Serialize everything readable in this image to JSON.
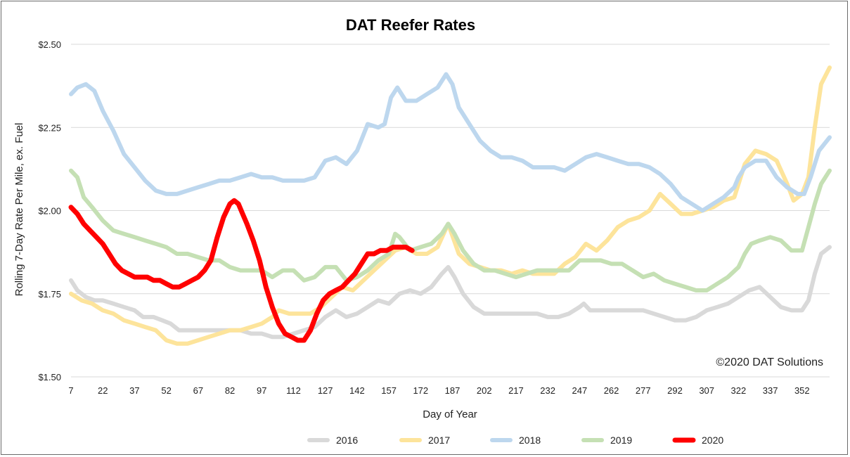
{
  "chart_data": {
    "type": "line",
    "title": "DAT Reefer Rates",
    "xlabel": "Day of Year",
    "ylabel": "Rolling 7-Day Rate Per Mile, ex. Fuel",
    "credit": "©2020 DAT Solutions",
    "xlim": [
      7,
      365
    ],
    "ylim": [
      1.5,
      2.5
    ],
    "x_ticks": [
      "7",
      "22",
      "37",
      "52",
      "67",
      "82",
      "97",
      "112",
      "127",
      "142",
      "157",
      "172",
      "187",
      "202",
      "217",
      "232",
      "247",
      "262",
      "277",
      "292",
      "307",
      "322",
      "337",
      "352"
    ],
    "y_ticks": [
      "$1.50",
      "$1.75",
      "$2.00",
      "$2.25",
      "$2.50"
    ],
    "grid": true,
    "legend_position": "bottom",
    "series": [
      {
        "name": "2016",
        "color": "#d9d9d9",
        "x": [
          7,
          10,
          14,
          18,
          22,
          27,
          32,
          37,
          41,
          46,
          50,
          54,
          58,
          62,
          67,
          72,
          77,
          82,
          87,
          92,
          97,
          102,
          107,
          112,
          117,
          122,
          127,
          132,
          137,
          142,
          147,
          152,
          157,
          162,
          167,
          172,
          177,
          182,
          185,
          188,
          192,
          197,
          202,
          207,
          212,
          217,
          222,
          227,
          232,
          237,
          242,
          247,
          249,
          252,
          257,
          262,
          267,
          272,
          277,
          282,
          287,
          292,
          297,
          302,
          307,
          312,
          317,
          322,
          327,
          332,
          337,
          342,
          347,
          352,
          355,
          358,
          361,
          365
        ],
        "values": [
          1.79,
          1.76,
          1.74,
          1.73,
          1.73,
          1.72,
          1.71,
          1.7,
          1.68,
          1.68,
          1.67,
          1.66,
          1.64,
          1.64,
          1.64,
          1.64,
          1.64,
          1.64,
          1.64,
          1.63,
          1.63,
          1.62,
          1.62,
          1.63,
          1.64,
          1.65,
          1.68,
          1.7,
          1.68,
          1.69,
          1.71,
          1.73,
          1.72,
          1.75,
          1.76,
          1.75,
          1.77,
          1.81,
          1.83,
          1.8,
          1.75,
          1.71,
          1.69,
          1.69,
          1.69,
          1.69,
          1.69,
          1.69,
          1.68,
          1.68,
          1.69,
          1.71,
          1.72,
          1.7,
          1.7,
          1.7,
          1.7,
          1.7,
          1.7,
          1.69,
          1.68,
          1.67,
          1.67,
          1.68,
          1.7,
          1.71,
          1.72,
          1.74,
          1.76,
          1.77,
          1.74,
          1.71,
          1.7,
          1.7,
          1.73,
          1.81,
          1.87,
          1.89
        ]
      },
      {
        "name": "2017",
        "color": "#fde49b",
        "x": [
          7,
          12,
          17,
          22,
          27,
          32,
          37,
          42,
          47,
          52,
          57,
          62,
          67,
          72,
          77,
          82,
          87,
          92,
          97,
          102,
          105,
          110,
          115,
          120,
          125,
          130,
          135,
          140,
          145,
          150,
          155,
          160,
          165,
          170,
          175,
          180,
          185,
          190,
          195,
          200,
          205,
          210,
          215,
          220,
          225,
          230,
          235,
          240,
          245,
          250,
          255,
          260,
          265,
          270,
          275,
          280,
          285,
          290,
          295,
          300,
          305,
          310,
          315,
          320,
          322,
          325,
          330,
          335,
          340,
          345,
          348,
          352,
          355,
          358,
          361,
          365
        ],
        "values": [
          1.75,
          1.73,
          1.72,
          1.7,
          1.69,
          1.67,
          1.66,
          1.65,
          1.64,
          1.61,
          1.6,
          1.6,
          1.61,
          1.62,
          1.63,
          1.64,
          1.64,
          1.65,
          1.66,
          1.68,
          1.7,
          1.69,
          1.69,
          1.69,
          1.71,
          1.74,
          1.77,
          1.76,
          1.79,
          1.82,
          1.85,
          1.88,
          1.89,
          1.87,
          1.87,
          1.89,
          1.96,
          1.87,
          1.84,
          1.83,
          1.82,
          1.82,
          1.81,
          1.82,
          1.81,
          1.81,
          1.81,
          1.84,
          1.86,
          1.9,
          1.88,
          1.91,
          1.95,
          1.97,
          1.98,
          2.0,
          2.05,
          2.02,
          1.99,
          1.99,
          2.0,
          2.01,
          2.03,
          2.04,
          2.08,
          2.14,
          2.18,
          2.17,
          2.15,
          2.08,
          2.03,
          2.05,
          2.1,
          2.25,
          2.38,
          2.43
        ]
      },
      {
        "name": "2018",
        "color": "#bdd7ee",
        "x": [
          7,
          10,
          14,
          18,
          22,
          27,
          32,
          37,
          42,
          47,
          52,
          57,
          62,
          67,
          72,
          77,
          82,
          87,
          92,
          97,
          102,
          107,
          112,
          117,
          122,
          127,
          132,
          137,
          142,
          147,
          152,
          155,
          158,
          161,
          165,
          170,
          175,
          180,
          184,
          187,
          190,
          195,
          200,
          205,
          210,
          215,
          220,
          225,
          230,
          235,
          240,
          245,
          250,
          255,
          260,
          265,
          270,
          275,
          280,
          285,
          290,
          295,
          300,
          305,
          310,
          315,
          320,
          322,
          325,
          330,
          335,
          340,
          345,
          350,
          353,
          356,
          360,
          365
        ],
        "values": [
          2.35,
          2.37,
          2.38,
          2.36,
          2.3,
          2.24,
          2.17,
          2.13,
          2.09,
          2.06,
          2.05,
          2.05,
          2.06,
          2.07,
          2.08,
          2.09,
          2.09,
          2.1,
          2.11,
          2.1,
          2.1,
          2.09,
          2.09,
          2.09,
          2.1,
          2.15,
          2.16,
          2.14,
          2.18,
          2.26,
          2.25,
          2.26,
          2.34,
          2.37,
          2.33,
          2.33,
          2.35,
          2.37,
          2.41,
          2.38,
          2.31,
          2.26,
          2.21,
          2.18,
          2.16,
          2.16,
          2.15,
          2.13,
          2.13,
          2.13,
          2.12,
          2.14,
          2.16,
          2.17,
          2.16,
          2.15,
          2.14,
          2.14,
          2.13,
          2.11,
          2.08,
          2.04,
          2.02,
          2.0,
          2.02,
          2.04,
          2.07,
          2.1,
          2.13,
          2.15,
          2.15,
          2.1,
          2.07,
          2.05,
          2.05,
          2.1,
          2.18,
          2.22
        ]
      },
      {
        "name": "2019",
        "color": "#c5e0b4",
        "x": [
          7,
          10,
          13,
          17,
          22,
          27,
          32,
          37,
          42,
          47,
          52,
          57,
          62,
          67,
          72,
          77,
          82,
          87,
          92,
          97,
          102,
          107,
          112,
          117,
          122,
          127,
          132,
          137,
          142,
          147,
          152,
          157,
          160,
          162,
          167,
          172,
          177,
          182,
          185,
          188,
          192,
          197,
          202,
          207,
          212,
          217,
          222,
          227,
          232,
          237,
          242,
          247,
          252,
          257,
          262,
          267,
          272,
          277,
          282,
          287,
          292,
          297,
          302,
          307,
          312,
          317,
          322,
          325,
          328,
          332,
          337,
          342,
          347,
          352,
          355,
          358,
          361,
          365
        ],
        "values": [
          2.12,
          2.1,
          2.04,
          2.01,
          1.97,
          1.94,
          1.93,
          1.92,
          1.91,
          1.9,
          1.89,
          1.87,
          1.87,
          1.86,
          1.85,
          1.85,
          1.83,
          1.82,
          1.82,
          1.82,
          1.8,
          1.82,
          1.82,
          1.79,
          1.8,
          1.83,
          1.83,
          1.79,
          1.8,
          1.82,
          1.85,
          1.87,
          1.93,
          1.92,
          1.88,
          1.89,
          1.9,
          1.93,
          1.96,
          1.93,
          1.88,
          1.84,
          1.82,
          1.82,
          1.81,
          1.8,
          1.81,
          1.82,
          1.82,
          1.82,
          1.82,
          1.85,
          1.85,
          1.85,
          1.84,
          1.84,
          1.82,
          1.8,
          1.81,
          1.79,
          1.78,
          1.77,
          1.76,
          1.76,
          1.78,
          1.8,
          1.83,
          1.87,
          1.9,
          1.91,
          1.92,
          1.91,
          1.88,
          1.88,
          1.95,
          2.02,
          2.08,
          2.12
        ]
      },
      {
        "name": "2020",
        "color": "#ff0000",
        "x": [
          7,
          10,
          13,
          16,
          19,
          22,
          25,
          28,
          31,
          34,
          37,
          40,
          43,
          46,
          49,
          52,
          55,
          58,
          61,
          64,
          67,
          70,
          73,
          76,
          79,
          82,
          84,
          86,
          88,
          90,
          93,
          96,
          99,
          102,
          105,
          108,
          111,
          114,
          117,
          120,
          123,
          126,
          129,
          132,
          135,
          138,
          141,
          144,
          147,
          150,
          153,
          156,
          159,
          162,
          165,
          168
        ],
        "values": [
          2.01,
          1.99,
          1.96,
          1.94,
          1.92,
          1.9,
          1.87,
          1.84,
          1.82,
          1.81,
          1.8,
          1.8,
          1.8,
          1.79,
          1.79,
          1.78,
          1.77,
          1.77,
          1.78,
          1.79,
          1.8,
          1.82,
          1.85,
          1.92,
          1.98,
          2.02,
          2.03,
          2.02,
          1.99,
          1.96,
          1.91,
          1.85,
          1.77,
          1.71,
          1.66,
          1.63,
          1.62,
          1.61,
          1.61,
          1.64,
          1.69,
          1.73,
          1.75,
          1.76,
          1.77,
          1.79,
          1.81,
          1.84,
          1.87,
          1.87,
          1.88,
          1.88,
          1.89,
          1.89,
          1.89,
          1.88
        ]
      }
    ]
  }
}
